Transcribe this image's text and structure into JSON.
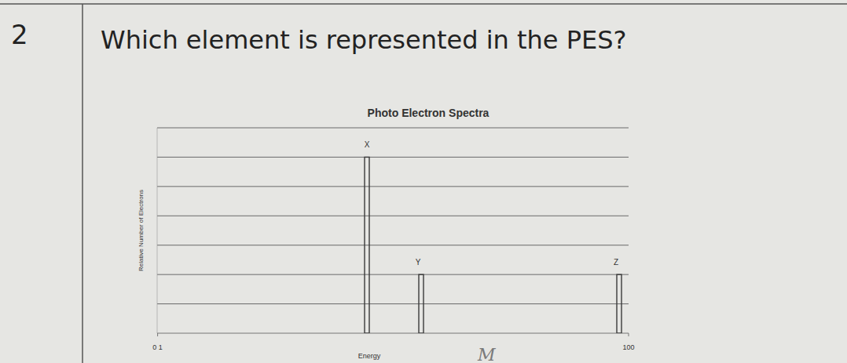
{
  "question": {
    "number": "2",
    "text": "Which element is represented in the PES?"
  },
  "chart_data": {
    "type": "bar",
    "title": "Photo Electron Spectra",
    "x_label": "Energy",
    "y_label": "Relative Number of Electrons",
    "categories": [
      "X",
      "Y",
      "Z"
    ],
    "x": [
      44.5,
      56,
      98
    ],
    "values": [
      6,
      2,
      2
    ],
    "color": "#3a3a3a",
    "xlim": [
      0,
      100
    ],
    "xticks": [
      {
        "value": 0.1,
        "label": "0 1"
      },
      100
    ],
    "ylim": [
      0,
      7
    ],
    "yticks": [
      1,
      2,
      3,
      4,
      5,
      6,
      7
    ],
    "grid": true,
    "tick_labels": "x",
    "annotations": [
      "M"
    ]
  }
}
